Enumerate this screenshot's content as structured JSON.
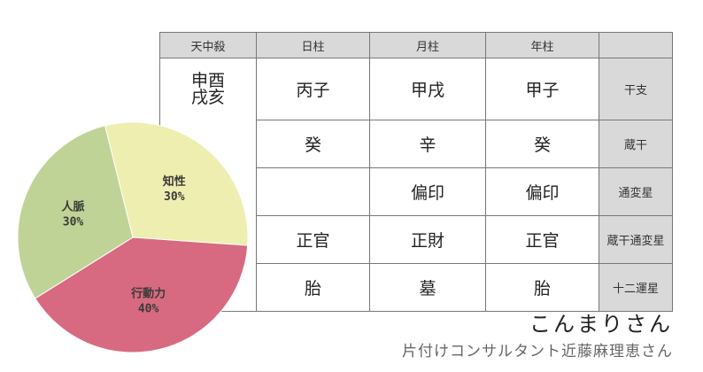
{
  "table": {
    "header": [
      "天中殺",
      "日柱",
      "月柱",
      "年柱",
      ""
    ],
    "tenchusatsu": [
      "申酉",
      "戌亥"
    ],
    "rows": [
      {
        "cells": [
          "丙子",
          "甲戌",
          "甲子"
        ],
        "label": "干支"
      },
      {
        "cells": [
          "癸",
          "辛",
          "癸"
        ],
        "label": "蔵干"
      },
      {
        "cells": [
          "",
          "偏印",
          "偏印"
        ],
        "label": "通変星"
      },
      {
        "cells": [
          "正官",
          "正財",
          "正官"
        ],
        "label": "蔵干通変星"
      },
      {
        "cells": [
          "胎",
          "墓",
          "胎"
        ],
        "label": "十二運星"
      }
    ]
  },
  "chart_data": {
    "type": "pie",
    "slices": [
      {
        "label": "知性",
        "value": 30,
        "value_label": "30%",
        "color": "#eeeeb0"
      },
      {
        "label": "行動力",
        "value": 40,
        "value_label": "40%",
        "color": "#d76a80"
      },
      {
        "label": "人脈",
        "value": 30,
        "value_label": "30%",
        "color": "#bfd396"
      }
    ]
  },
  "caption": {
    "name": "こんまりさん",
    "subtitle": "片付けコンサルタント近藤麻理恵さん"
  }
}
